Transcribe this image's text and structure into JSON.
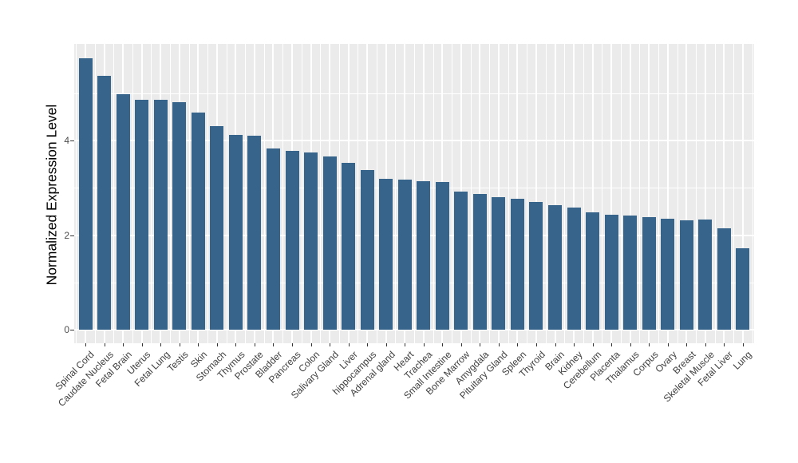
{
  "chart_data": {
    "type": "bar",
    "title": "",
    "xlabel": "",
    "ylabel": "Normalized Expression Level",
    "categories": [
      "Spinal Cord",
      "Caudate Nucleus",
      "Fetal Brain",
      "Uterus",
      "Fetal Lung",
      "Testis",
      "Skin",
      "Stomach",
      "Thymus",
      "Prostate",
      "Bladder",
      "Pancreas",
      "Colon",
      "Salivary Gland",
      "Liver",
      "hippocampus",
      "Adrenal gland",
      "Heart",
      "Trachea",
      "Small Intestine",
      "Bone Marrow",
      "Amygdala",
      "Pituitary Gland",
      "Spleen",
      "Thyroid",
      "Brain",
      "Kidney",
      "Cerebellum",
      "Placenta",
      "Thalamus",
      "Corpus",
      "Ovary",
      "Breast",
      "Skeletal Muscle",
      "Fetal Liver",
      "Lung"
    ],
    "values": [
      5.74,
      5.38,
      4.99,
      4.87,
      4.86,
      4.81,
      4.6,
      4.3,
      4.13,
      4.1,
      3.83,
      3.79,
      3.75,
      3.66,
      3.53,
      3.38,
      3.19,
      3.17,
      3.14,
      3.13,
      2.93,
      2.87,
      2.81,
      2.77,
      2.7,
      2.64,
      2.58,
      2.48,
      2.44,
      2.42,
      2.38,
      2.35,
      2.32,
      2.33,
      2.15,
      1.72
    ],
    "yticks": [
      0,
      2,
      4
    ],
    "yticks_minor": [
      1,
      3,
      5
    ],
    "ylim": [
      0,
      6.05
    ],
    "grid": "on",
    "legend": "none",
    "bar_color": "#36648B",
    "panel_bg": "#EBEBEB",
    "grid_color": "#FFFFFF",
    "tick_label_color": "#4D4D4D",
    "axis_title_color": "#000000"
  }
}
